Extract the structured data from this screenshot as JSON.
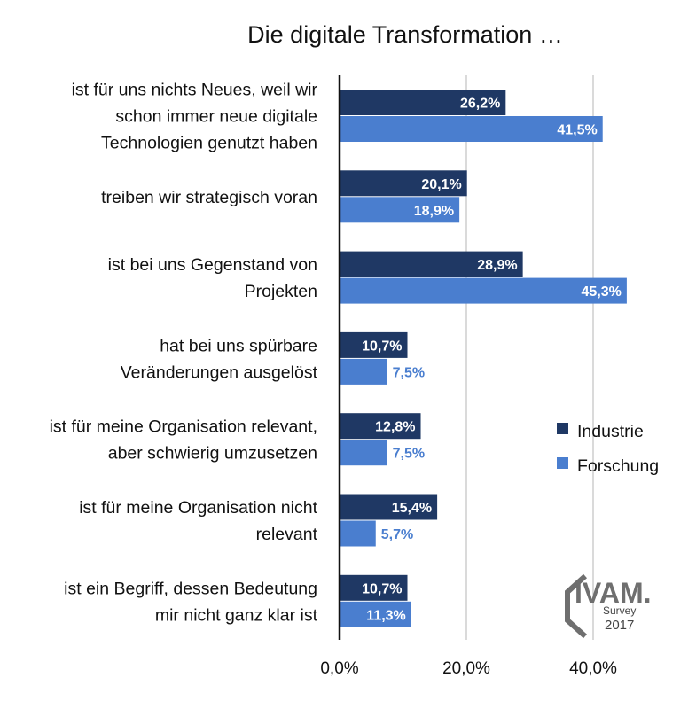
{
  "chart_data": {
    "type": "bar",
    "orientation": "horizontal",
    "title": "Die digitale Transformation …",
    "categories": [
      [
        "ist für uns nichts Neues, weil wir",
        "schon immer neue digitale",
        "Technologien genutzt haben"
      ],
      [
        "treiben wir strategisch voran"
      ],
      [
        "ist bei uns Gegenstand von",
        "Projekten"
      ],
      [
        "hat bei uns spürbare",
        "Veränderungen ausgelöst"
      ],
      [
        "ist für meine Organisation relevant,",
        "aber schwierig umzusetzen"
      ],
      [
        "ist für meine Organisation nicht",
        "relevant"
      ],
      [
        "ist ein Begriff, dessen Bedeutung",
        "mir nicht ganz klar ist"
      ]
    ],
    "series": [
      {
        "name": "Industrie",
        "color": "#1f3864",
        "values": [
          26.2,
          20.1,
          28.9,
          10.7,
          12.8,
          15.4,
          10.7
        ],
        "labels": [
          "26,2%",
          "20,1%",
          "28,9%",
          "10,7%",
          "12,8%",
          "15,4%",
          "10,7%"
        ]
      },
      {
        "name": "Forschung",
        "color": "#4a7ecf",
        "values": [
          41.5,
          18.9,
          45.3,
          7.5,
          7.5,
          5.7,
          11.3
        ],
        "labels": [
          "41,5%",
          "18,9%",
          "45,3%",
          "7,5%",
          "7,5%",
          "5,7%",
          "11,3%"
        ]
      }
    ],
    "xlim": [
      0,
      46.8
    ],
    "ticks": [
      0,
      20,
      40
    ],
    "tick_labels": [
      "0,0%",
      "20,0%",
      "40,0%"
    ],
    "gridlines": "vertical",
    "legend": "right, lower-middle"
  },
  "logo": {
    "text": "IVAM.",
    "subtitle": "Survey",
    "year": "2017"
  }
}
